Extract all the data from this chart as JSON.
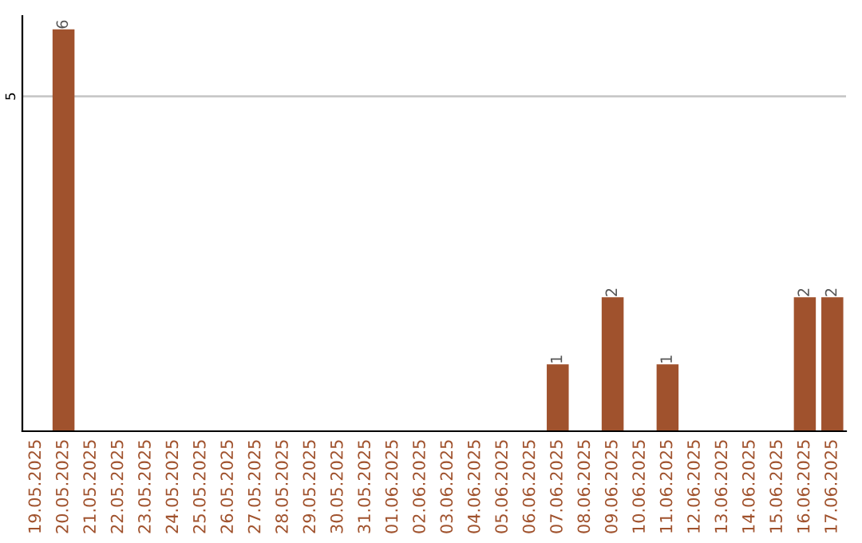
{
  "chart_data": {
    "type": "bar",
    "categories": [
      "19.05.2025",
      "20.05.2025",
      "21.05.2025",
      "22.05.2025",
      "23.05.2025",
      "24.05.2025",
      "25.05.2025",
      "26.05.2025",
      "27.05.2025",
      "28.05.2025",
      "29.05.2025",
      "30.05.2025",
      "31.05.2025",
      "01.06.2025",
      "02.06.2025",
      "03.06.2025",
      "04.06.2025",
      "05.06.2025",
      "06.06.2025",
      "07.06.2025",
      "08.06.2025",
      "09.06.2025",
      "10.06.2025",
      "11.06.2025",
      "12.06.2025",
      "13.06.2025",
      "14.06.2025",
      "15.06.2025",
      "16.06.2025",
      "17.06.2025"
    ],
    "values": [
      0,
      6,
      0,
      0,
      0,
      0,
      0,
      0,
      0,
      0,
      0,
      0,
      0,
      0,
      0,
      0,
      0,
      0,
      0,
      1,
      0,
      2,
      0,
      1,
      0,
      0,
      0,
      0,
      2,
      2
    ],
    "value_labels": [
      null,
      "6",
      null,
      null,
      null,
      null,
      null,
      null,
      null,
      null,
      null,
      null,
      null,
      null,
      null,
      null,
      null,
      null,
      null,
      "1",
      null,
      "2",
      null,
      "1",
      null,
      null,
      null,
      null,
      "2",
      "2"
    ],
    "color": "#a0522d",
    "ylim": [
      0,
      6.2
    ],
    "yticks": [
      5
    ],
    "grid": "y"
  }
}
